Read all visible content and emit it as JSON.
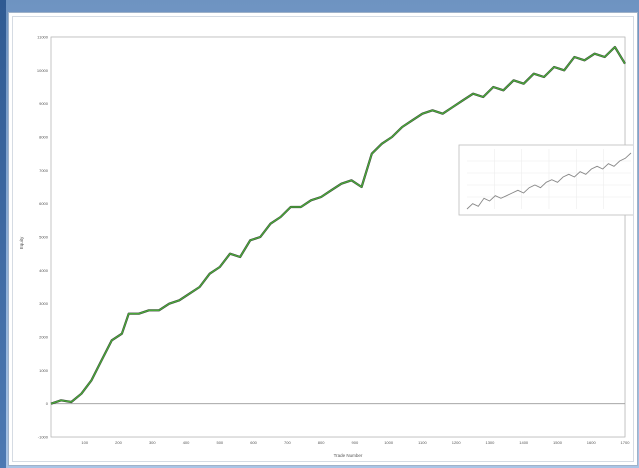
{
  "chart_data": {
    "type": "line",
    "title": "",
    "xlabel": "Trade Number",
    "ylabel": "Equity",
    "xlim": [
      0,
      1700
    ],
    "ylim": [
      -1000,
      11000
    ],
    "x_ticks": [
      100,
      200,
      300,
      400,
      500,
      600,
      700,
      800,
      900,
      1000,
      1100,
      1200,
      1300,
      1400,
      1500,
      1600,
      1700
    ],
    "y_ticks": [
      -1000,
      0,
      1000,
      2000,
      3000,
      4000,
      5000,
      6000,
      7000,
      8000,
      9000,
      10000,
      11000
    ],
    "grid": true,
    "legend": "none",
    "series": [
      {
        "color": "#4aa83a",
        "x": [
          0,
          30,
          60,
          90,
          120,
          150,
          180,
          210,
          230,
          260,
          290,
          320,
          350,
          380,
          410,
          440,
          470,
          500,
          530,
          560,
          590,
          620,
          650,
          680,
          710,
          740,
          770,
          800,
          830,
          860,
          890,
          920,
          950,
          980,
          1010,
          1040,
          1070,
          1100,
          1130,
          1160,
          1190,
          1220,
          1250,
          1280,
          1310,
          1340,
          1370,
          1400,
          1430,
          1460,
          1490,
          1520,
          1550,
          1580,
          1610,
          1640,
          1670,
          1700
        ],
        "y": [
          0,
          100,
          50,
          300,
          700,
          1300,
          1900,
          2100,
          2700,
          2700,
          2800,
          2800,
          3000,
          3100,
          3300,
          3500,
          3900,
          4100,
          4500,
          4400,
          4900,
          5000,
          5400,
          5600,
          5900,
          5900,
          6100,
          6200,
          6400,
          6600,
          6700,
          6500,
          7500,
          7800,
          8000,
          8300,
          8500,
          8700,
          8800,
          8700,
          8900,
          9100,
          9300,
          9200,
          9500,
          9400,
          9700,
          9600,
          9900,
          9800,
          10100,
          10000,
          10400,
          10300,
          10500,
          10400,
          10700,
          10200
        ]
      }
    ],
    "inset": {
      "type": "line",
      "color": "#888888",
      "x": [
        0,
        1,
        2,
        3,
        4,
        5,
        6,
        7,
        8,
        9,
        10,
        11,
        12,
        13,
        14,
        15,
        16,
        17,
        18,
        19,
        20,
        21,
        22,
        23,
        24,
        25,
        26,
        27,
        28,
        29
      ],
      "y": [
        1,
        3,
        2,
        5,
        4,
        6,
        5,
        6,
        7,
        8,
        7,
        9,
        10,
        9,
        11,
        12,
        11,
        13,
        14,
        13,
        15,
        14,
        16,
        17,
        16,
        18,
        17,
        19,
        20,
        22
      ]
    }
  }
}
